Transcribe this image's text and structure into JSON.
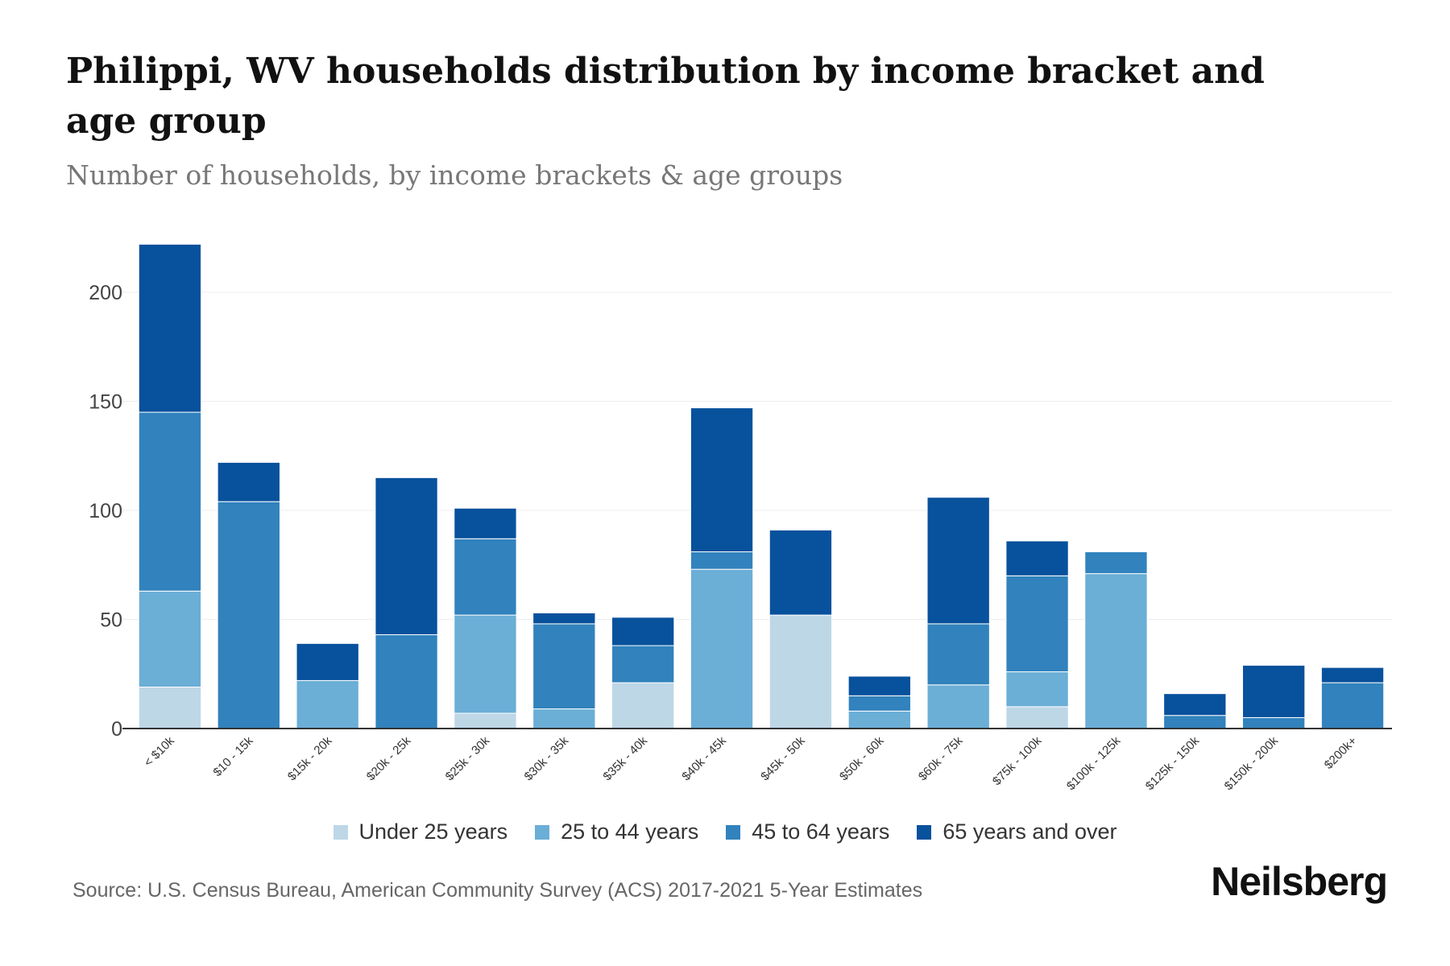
{
  "title": "Philippi, WV households distribution by income bracket and age group",
  "subtitle": "Number of households, by income brackets & age groups",
  "source": "Source: U.S. Census Bureau, American Community Survey (ACS) 2017-2021 5-Year Estimates",
  "brand": "Neilsberg",
  "colors": {
    "under_25": "#bdd7e7",
    "age_25_44": "#6baed6",
    "age_45_64": "#3182bd",
    "age_65_plus": "#08519c",
    "grid": "#eeeeee",
    "axis": "#333333"
  },
  "chart_data": {
    "type": "bar",
    "stacked": true,
    "title": "Philippi, WV households distribution by income bracket and age group",
    "xlabel": "",
    "ylabel": "",
    "ylim": [
      0,
      220
    ],
    "yticks": [
      0,
      50,
      100,
      150,
      200
    ],
    "grid": true,
    "legend_position": "bottom",
    "categories": [
      "< $10k",
      "$10 - 15k",
      "$15k - 20k",
      "$20k - 25k",
      "$25k - 30k",
      "$30k - 35k",
      "$35k - 40k",
      "$40k - 45k",
      "$45k - 50k",
      "$50k - 60k",
      "$60k - 75k",
      "$75k - 100k",
      "$100k - 125k",
      "$125k - 150k",
      "$150k - 200k",
      "$200k+"
    ],
    "series": [
      {
        "name": "Under 25 years",
        "color": "#bdd7e7",
        "values": [
          19,
          0,
          0,
          0,
          7,
          0,
          21,
          0,
          52,
          0,
          0,
          10,
          0,
          0,
          0,
          0
        ]
      },
      {
        "name": "25 to 44 years",
        "color": "#6baed6",
        "values": [
          44,
          0,
          22,
          0,
          45,
          9,
          0,
          73,
          0,
          8,
          20,
          16,
          71,
          0,
          0,
          0
        ]
      },
      {
        "name": "45 to 64 years",
        "color": "#3182bd",
        "values": [
          82,
          104,
          0,
          43,
          35,
          39,
          17,
          8,
          0,
          7,
          28,
          44,
          10,
          6,
          5,
          21
        ]
      },
      {
        "name": "65 years and over",
        "color": "#08519c",
        "values": [
          77,
          18,
          17,
          72,
          14,
          5,
          13,
          66,
          39,
          9,
          58,
          16,
          0,
          10,
          24,
          7
        ]
      }
    ]
  }
}
